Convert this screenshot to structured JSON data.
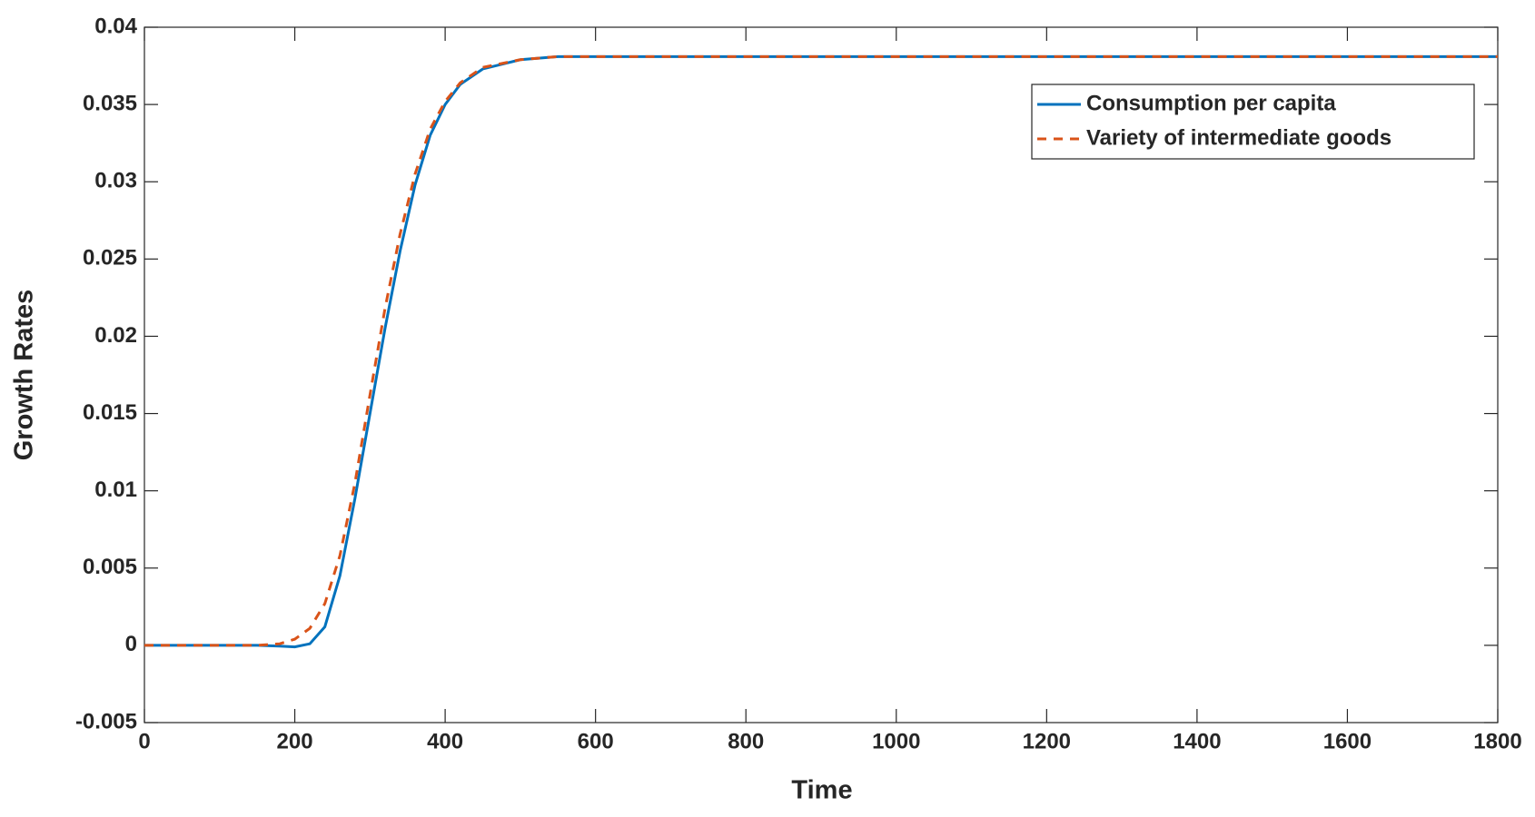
{
  "chart_data": {
    "type": "line",
    "x_label": "Time",
    "y_label": "Growth Rates",
    "x": [
      0,
      100,
      150,
      180,
      200,
      220,
      240,
      260,
      280,
      300,
      320,
      340,
      360,
      380,
      400,
      420,
      450,
      500,
      550,
      600,
      800,
      1000,
      1200,
      1400,
      1600,
      1800
    ],
    "series": [
      {
        "name": "Consumption per capita",
        "color": "#0072BD",
        "dash": "solid",
        "values": [
          0,
          0,
          0,
          -5e-05,
          -0.0001,
          0.0001,
          0.0012,
          0.0045,
          0.0095,
          0.015,
          0.0205,
          0.0255,
          0.0298,
          0.033,
          0.035,
          0.0363,
          0.0373,
          0.0379,
          0.0381,
          0.0381,
          0.0381,
          0.0381,
          0.0381,
          0.0381,
          0.0381,
          0.0381
        ]
      },
      {
        "name": "Variety of intermediate goods",
        "color": "#D95319",
        "dash": "dashed",
        "values": [
          0,
          0,
          0,
          0.0001,
          0.0004,
          0.0011,
          0.0027,
          0.0058,
          0.0105,
          0.0162,
          0.0218,
          0.0266,
          0.0305,
          0.0334,
          0.0352,
          0.0364,
          0.0374,
          0.0379,
          0.0381,
          0.0381,
          0.0381,
          0.0381,
          0.0381,
          0.0381,
          0.0381,
          0.0381
        ]
      }
    ],
    "xlim": [
      0,
      1800
    ],
    "xticks": [
      0,
      200,
      400,
      600,
      800,
      1000,
      1200,
      1400,
      1600,
      1800
    ],
    "ylim": [
      -0.005,
      0.04
    ],
    "yticks": [
      -0.005,
      0,
      0.005,
      0.01,
      0.015,
      0.02,
      0.025,
      0.03,
      0.035,
      0.04
    ],
    "grid": false,
    "legend": "upper right"
  }
}
